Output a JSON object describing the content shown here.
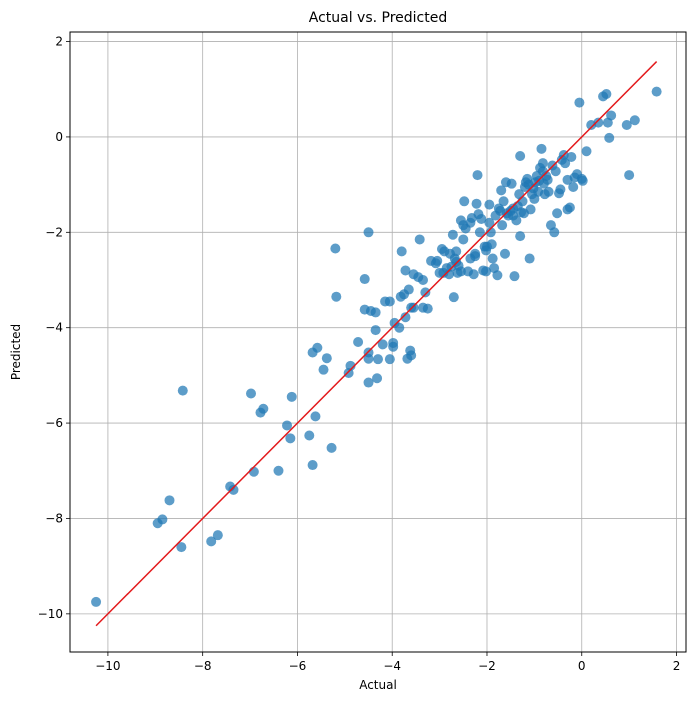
{
  "chart_data": {
    "type": "scatter",
    "title": "Actual vs. Predicted",
    "xlabel": "Actual",
    "ylabel": "Predicted",
    "xlim": [
      -10.8,
      2.2
    ],
    "ylim": [
      -10.8,
      2.2
    ],
    "xticks": [
      -10,
      -8,
      -6,
      -4,
      -2,
      0,
      2
    ],
    "yticks": [
      -10,
      -8,
      -6,
      -4,
      -2,
      0,
      2
    ],
    "xtick_labels": [
      "−10",
      "−8",
      "−6",
      "−4",
      "−2",
      "0",
      "2"
    ],
    "ytick_labels": [
      "−10",
      "−8",
      "−6",
      "−4",
      "−2",
      "0",
      "2"
    ],
    "grid": true,
    "point_color": "#1f77b4",
    "line_color": "#e31a1c",
    "reference_line": {
      "x": [
        -10.25,
        1.58
      ],
      "y": [
        -10.25,
        1.58
      ]
    },
    "points": [
      [
        -10.25,
        -9.75
      ],
      [
        -8.95,
        -8.1
      ],
      [
        -8.85,
        -8.02
      ],
      [
        -8.7,
        -7.62
      ],
      [
        -8.45,
        -8.6
      ],
      [
        -8.42,
        -5.32
      ],
      [
        -7.82,
        -8.48
      ],
      [
        -7.68,
        -8.35
      ],
      [
        -7.42,
        -7.33
      ],
      [
        -7.35,
        -7.4
      ],
      [
        -6.98,
        -5.38
      ],
      [
        -6.92,
        -7.02
      ],
      [
        -6.78,
        -5.78
      ],
      [
        -6.72,
        -5.7
      ],
      [
        -6.4,
        -7.0
      ],
      [
        -6.22,
        -6.05
      ],
      [
        -6.15,
        -6.32
      ],
      [
        -6.12,
        -5.45
      ],
      [
        -5.75,
        -6.26
      ],
      [
        -5.68,
        -6.88
      ],
      [
        -5.62,
        -5.86
      ],
      [
        -5.68,
        -4.52
      ],
      [
        -5.58,
        -4.42
      ],
      [
        -5.45,
        -4.88
      ],
      [
        -5.38,
        -4.64
      ],
      [
        -5.28,
        -6.52
      ],
      [
        -5.18,
        -3.35
      ],
      [
        -5.2,
        -2.34
      ],
      [
        -4.92,
        -4.95
      ],
      [
        -4.88,
        -4.8
      ],
      [
        -4.72,
        -4.3
      ],
      [
        -4.58,
        -3.62
      ],
      [
        -4.58,
        -2.98
      ],
      [
        -4.5,
        -4.52
      ],
      [
        -4.5,
        -4.65
      ],
      [
        -4.5,
        -5.15
      ],
      [
        -4.5,
        -2.0
      ],
      [
        -4.45,
        -3.65
      ],
      [
        -4.35,
        -3.68
      ],
      [
        -4.35,
        -4.05
      ],
      [
        -4.32,
        -5.06
      ],
      [
        -4.3,
        -4.66
      ],
      [
        -4.2,
        -4.35
      ],
      [
        -4.15,
        -3.45
      ],
      [
        -4.05,
        -3.45
      ],
      [
        -4.05,
        -4.66
      ],
      [
        -3.98,
        -4.32
      ],
      [
        -3.98,
        -4.4
      ],
      [
        -3.95,
        -3.9
      ],
      [
        -3.85,
        -4.0
      ],
      [
        -3.82,
        -3.35
      ],
      [
        -3.8,
        -2.4
      ],
      [
        -3.75,
        -3.3
      ],
      [
        -3.72,
        -3.78
      ],
      [
        -3.72,
        -2.8
      ],
      [
        -3.68,
        -4.65
      ],
      [
        -3.65,
        -3.2
      ],
      [
        -3.62,
        -4.48
      ],
      [
        -3.6,
        -3.58
      ],
      [
        -3.6,
        -4.58
      ],
      [
        -3.55,
        -3.58
      ],
      [
        -3.55,
        -2.88
      ],
      [
        -3.45,
        -2.94
      ],
      [
        -3.42,
        -2.15
      ],
      [
        -3.35,
        -3.0
      ],
      [
        -3.35,
        -3.58
      ],
      [
        -3.3,
        -3.26
      ],
      [
        -3.25,
        -3.6
      ],
      [
        -3.18,
        -2.6
      ],
      [
        -3.08,
        -2.65
      ],
      [
        -3.05,
        -2.6
      ],
      [
        -2.95,
        -2.35
      ],
      [
        -2.92,
        -2.85
      ],
      [
        -2.9,
        -2.4
      ],
      [
        -2.85,
        -2.75
      ],
      [
        -2.8,
        -2.88
      ],
      [
        -2.78,
        -2.45
      ],
      [
        -2.75,
        -2.72
      ],
      [
        -2.72,
        -2.05
      ],
      [
        -2.7,
        -3.36
      ],
      [
        -2.68,
        -2.55
      ],
      [
        -2.65,
        -2.62
      ],
      [
        -2.62,
        -2.85
      ],
      [
        -2.6,
        -2.7
      ],
      [
        -2.55,
        -2.82
      ],
      [
        -2.55,
        -1.75
      ],
      [
        -2.5,
        -1.85
      ],
      [
        -2.5,
        -2.15
      ],
      [
        -2.48,
        -1.35
      ],
      [
        -2.45,
        -1.92
      ],
      [
        -2.4,
        -2.82
      ],
      [
        -2.35,
        -1.8
      ],
      [
        -2.32,
        -1.7
      ],
      [
        -2.28,
        -2.88
      ],
      [
        -2.25,
        -2.5
      ],
      [
        -2.25,
        -2.45
      ],
      [
        -2.22,
        -1.4
      ],
      [
        -2.2,
        -0.8
      ],
      [
        -2.18,
        -1.62
      ],
      [
        -2.15,
        -2.0
      ],
      [
        -2.12,
        -1.72
      ],
      [
        -2.08,
        -2.8
      ],
      [
        -2.05,
        -2.3
      ],
      [
        -2.02,
        -2.38
      ],
      [
        -2.02,
        -2.82
      ],
      [
        -2.0,
        -2.3
      ],
      [
        -1.95,
        -1.8
      ],
      [
        -1.95,
        -1.42
      ],
      [
        -1.92,
        -2.0
      ],
      [
        -1.88,
        -2.55
      ],
      [
        -1.85,
        -2.75
      ],
      [
        -1.82,
        -1.65
      ],
      [
        -1.78,
        -2.9
      ],
      [
        -1.75,
        -1.5
      ],
      [
        -1.72,
        -1.55
      ],
      [
        -1.7,
        -1.12
      ],
      [
        -1.68,
        -1.85
      ],
      [
        -1.65,
        -1.35
      ],
      [
        -1.62,
        -2.45
      ],
      [
        -1.6,
        -0.95
      ],
      [
        -1.58,
        -1.6
      ],
      [
        -1.55,
        -1.65
      ],
      [
        -1.5,
        -1.55
      ],
      [
        -1.48,
        -0.98
      ],
      [
        -1.45,
        -1.5
      ],
      [
        -1.45,
        -1.65
      ],
      [
        -1.42,
        -2.92
      ],
      [
        -1.38,
        -1.75
      ],
      [
        -1.35,
        -1.45
      ],
      [
        -1.32,
        -1.2
      ],
      [
        -1.3,
        -2.08
      ],
      [
        -1.28,
        -1.58
      ],
      [
        -1.25,
        -1.35
      ],
      [
        -1.22,
        -1.6
      ],
      [
        -1.2,
        -1.05
      ],
      [
        -1.18,
        -0.95
      ],
      [
        -1.15,
        -0.88
      ],
      [
        -1.12,
        -1.0
      ],
      [
        -1.1,
        -2.55
      ],
      [
        -1.08,
        -1.52
      ],
      [
        -1.05,
        -1.2
      ],
      [
        -1.02,
        -1.08
      ],
      [
        -1.0,
        -1.3
      ],
      [
        -0.98,
        -0.95
      ],
      [
        -0.95,
        -0.82
      ],
      [
        -0.92,
        -1.15
      ],
      [
        -0.9,
        -0.92
      ],
      [
        -0.88,
        -0.65
      ],
      [
        -0.85,
        -0.25
      ],
      [
        -0.82,
        -0.72
      ],
      [
        -0.82,
        -0.55
      ],
      [
        -0.8,
        -0.98
      ],
      [
        -0.78,
        -1.2
      ],
      [
        -0.75,
        -0.82
      ],
      [
        -0.72,
        -0.9
      ],
      [
        -0.7,
        -1.15
      ],
      [
        -0.65,
        -1.85
      ],
      [
        -0.62,
        -0.6
      ],
      [
        -0.58,
        -2.0
      ],
      [
        -0.55,
        -0.72
      ],
      [
        -0.52,
        -1.6
      ],
      [
        -0.48,
        -1.18
      ],
      [
        -0.45,
        -1.1
      ],
      [
        -0.42,
        -0.48
      ],
      [
        -0.38,
        -0.38
      ],
      [
        -0.35,
        -0.55
      ],
      [
        -0.3,
        -1.52
      ],
      [
        -0.25,
        -1.48
      ],
      [
        -0.22,
        -0.42
      ],
      [
        -0.18,
        -1.05
      ],
      [
        -0.15,
        -0.85
      ],
      [
        -0.1,
        -0.78
      ],
      [
        -0.05,
        0.72
      ],
      [
        0.0,
        -0.88
      ],
      [
        0.02,
        -0.92
      ],
      [
        0.1,
        -0.3
      ],
      [
        0.2,
        0.25
      ],
      [
        0.35,
        0.3
      ],
      [
        0.45,
        0.85
      ],
      [
        0.52,
        0.9
      ],
      [
        0.55,
        0.3
      ],
      [
        0.58,
        -0.02
      ],
      [
        0.62,
        0.45
      ],
      [
        0.95,
        0.25
      ],
      [
        1.0,
        -0.8
      ],
      [
        1.12,
        0.35
      ],
      [
        1.58,
        0.95
      ],
      [
        -1.3,
        -0.4
      ],
      [
        -0.3,
        -0.9
      ],
      [
        -1.9,
        -2.25
      ],
      [
        -2.65,
        -2.4
      ],
      [
        -2.35,
        -2.55
      ],
      [
        -3.0,
        -2.85
      ]
    ]
  }
}
